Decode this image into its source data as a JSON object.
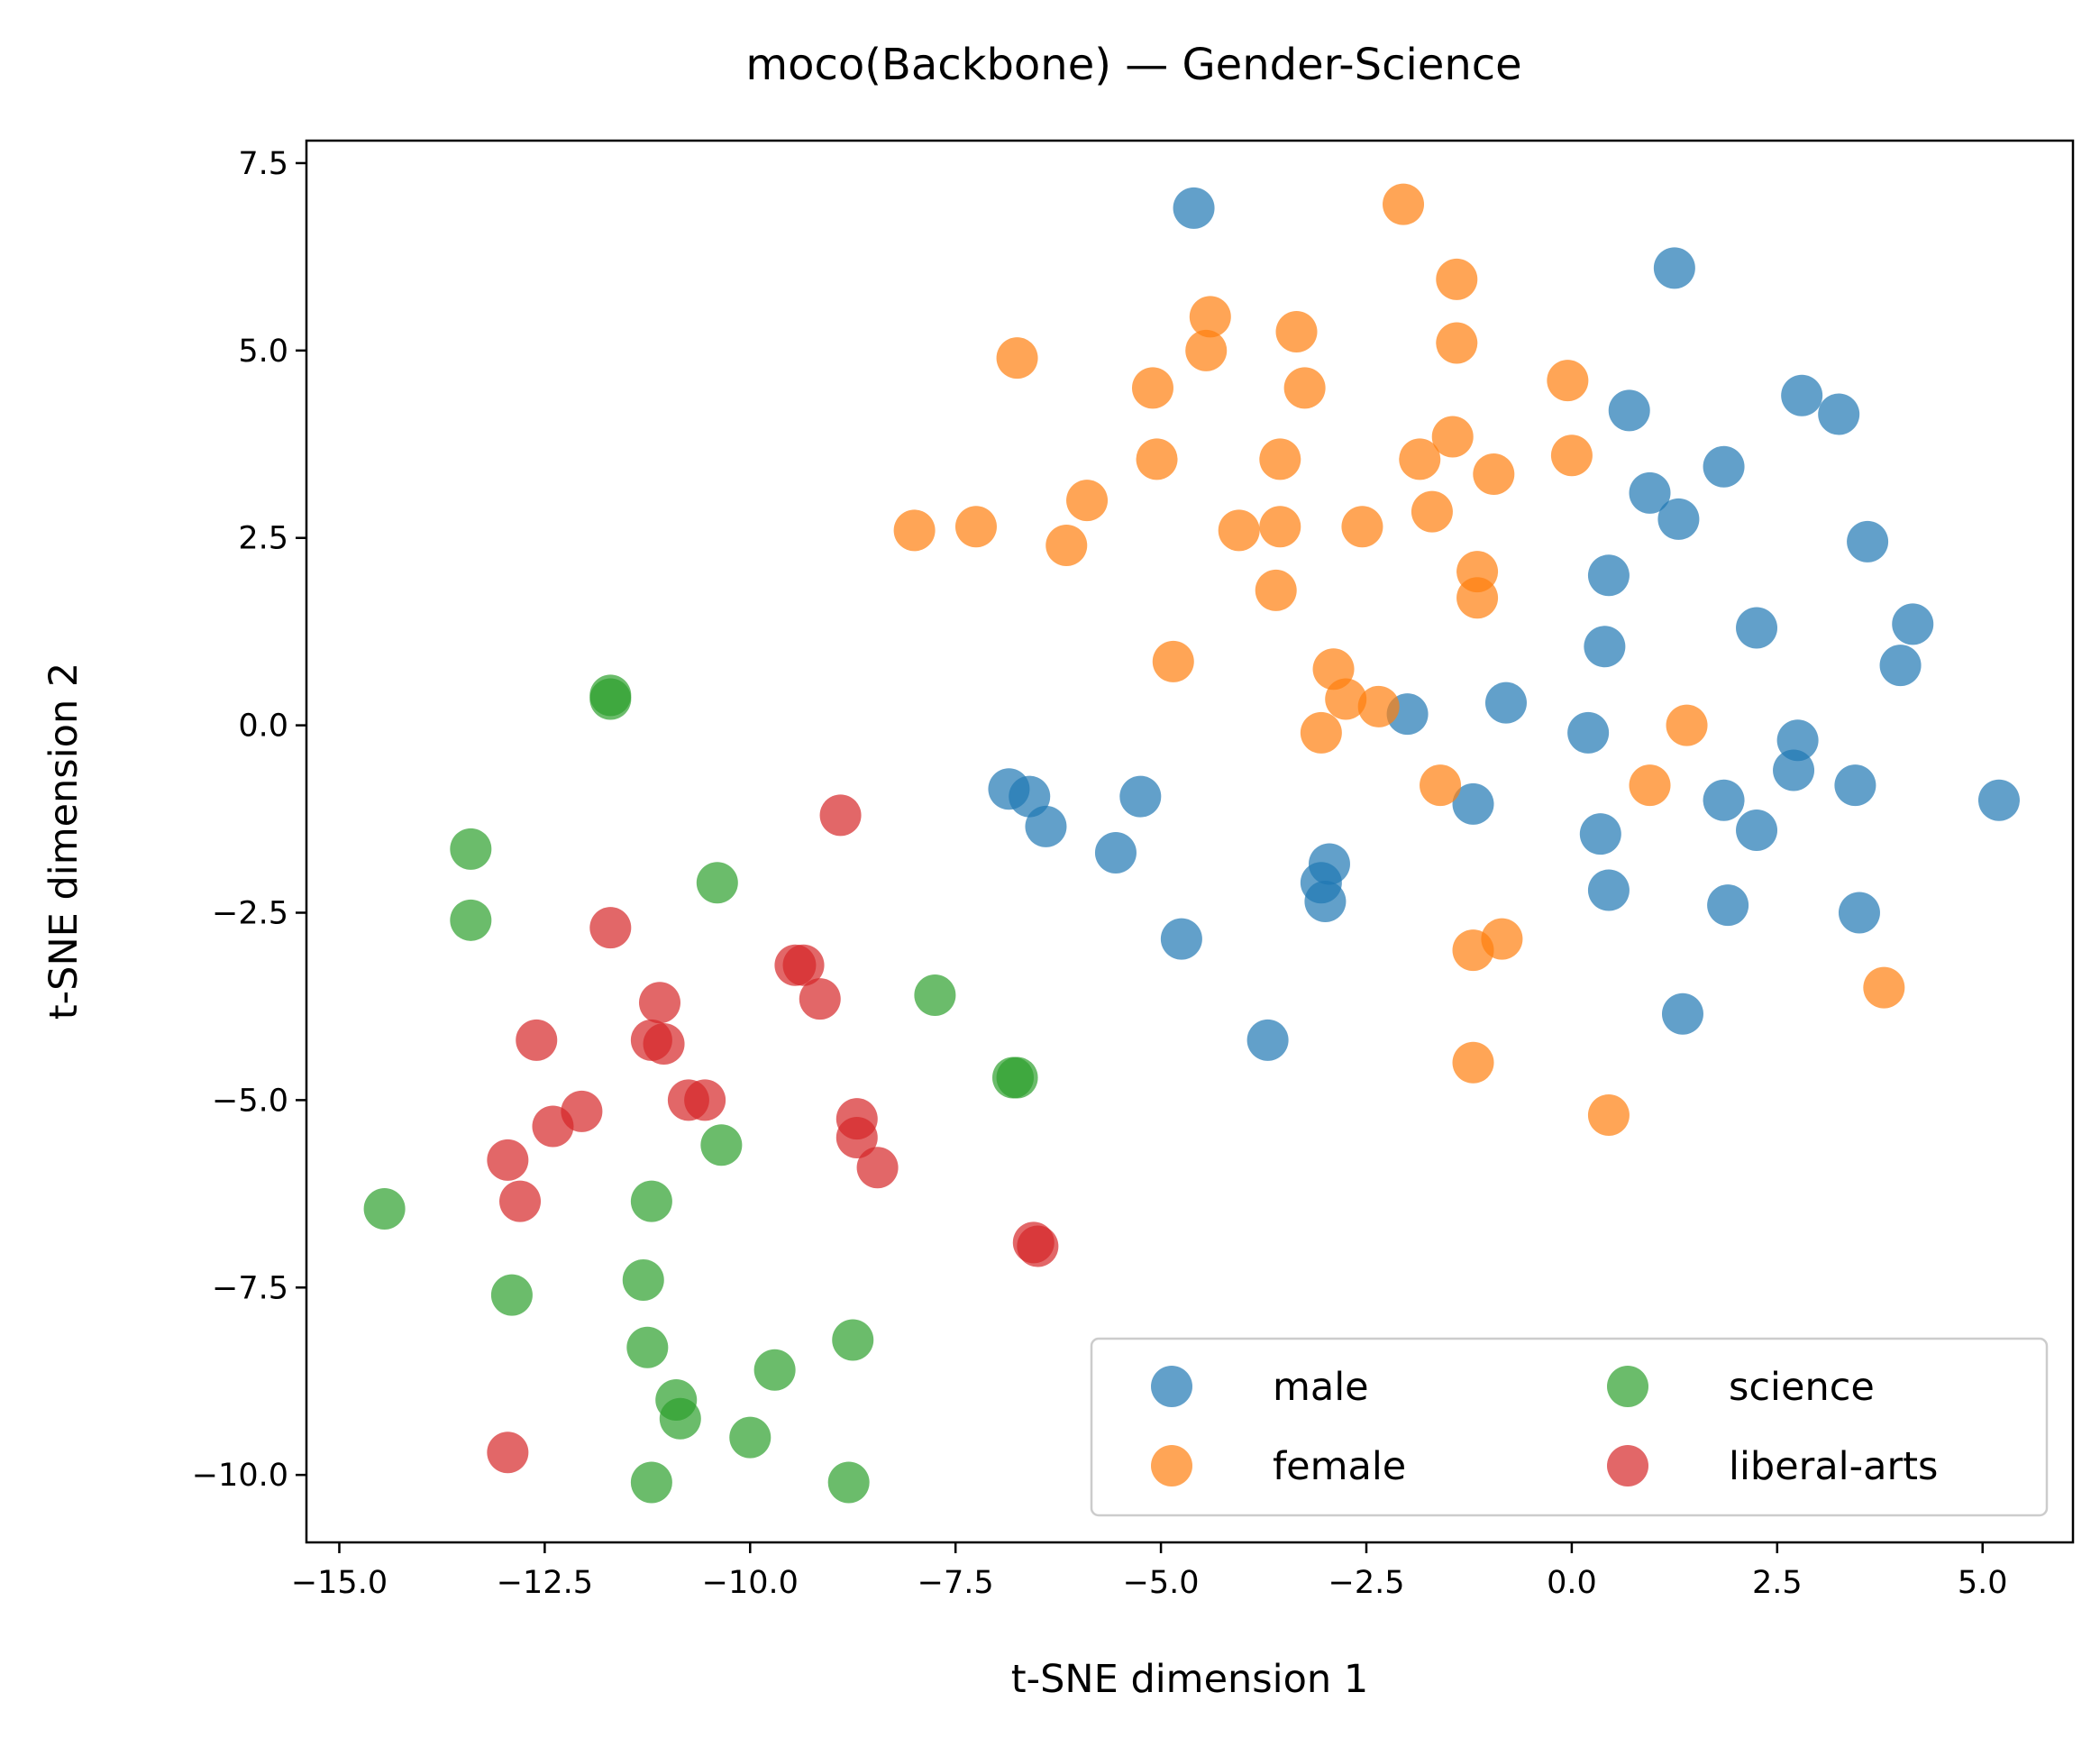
{
  "chart_data": {
    "type": "scatter",
    "title": "moco(Backbone) — Gender-Science",
    "xlabel": "t-SNE dimension 1",
    "ylabel": "t-SNE dimension 2",
    "xlim": [
      -15.4,
      6.1
    ],
    "ylim": [
      -10.9,
      7.8
    ],
    "xticks": [
      -15.0,
      -12.5,
      -10.0,
      -7.5,
      -5.0,
      -2.5,
      0.0,
      2.5,
      5.0
    ],
    "xtick_labels": [
      "−15.0",
      "−12.5",
      "−10.0",
      "−7.5",
      "−5.0",
      "−2.5",
      "0.0",
      "2.5",
      "5.0"
    ],
    "yticks": [
      -10.0,
      -7.5,
      -5.0,
      -2.5,
      0.0,
      2.5,
      5.0,
      7.5
    ],
    "ytick_labels": [
      "−10.0",
      "−7.5",
      "−5.0",
      "−2.5",
      "0.0",
      "2.5",
      "5.0",
      "7.5"
    ],
    "grid": false,
    "legend": {
      "position": "lower-right",
      "columns": 2
    },
    "series": [
      {
        "name": "male",
        "color": "#1f77b4",
        "points": [
          [
            -4.6,
            6.9
          ],
          [
            1.25,
            6.1
          ],
          [
            2.8,
            4.4
          ],
          [
            3.25,
            4.15
          ],
          [
            0.7,
            4.2
          ],
          [
            1.85,
            3.45
          ],
          [
            0.95,
            3.1
          ],
          [
            1.3,
            2.75
          ],
          [
            3.6,
            2.45
          ],
          [
            0.45,
            2.0
          ],
          [
            2.25,
            1.3
          ],
          [
            4.15,
            1.35
          ],
          [
            0.4,
            1.05
          ],
          [
            4.0,
            0.8
          ],
          [
            -2.0,
            0.15
          ],
          [
            -0.8,
            0.3
          ],
          [
            0.2,
            -0.1
          ],
          [
            2.75,
            -0.2
          ],
          [
            2.7,
            -0.6
          ],
          [
            3.45,
            -0.8
          ],
          [
            5.2,
            -1.0
          ],
          [
            -6.85,
            -0.85
          ],
          [
            -6.6,
            -0.95
          ],
          [
            -5.25,
            -0.95
          ],
          [
            1.85,
            -1.0
          ],
          [
            -1.2,
            -1.05
          ],
          [
            -6.4,
            -1.35
          ],
          [
            2.25,
            -1.4
          ],
          [
            0.35,
            -1.45
          ],
          [
            -5.55,
            -1.7
          ],
          [
            -2.95,
            -1.85
          ],
          [
            -3.05,
            -2.1
          ],
          [
            -3.0,
            -2.35
          ],
          [
            0.45,
            -2.2
          ],
          [
            1.9,
            -2.4
          ],
          [
            3.5,
            -2.5
          ],
          [
            -4.75,
            -2.85
          ],
          [
            1.35,
            -3.85
          ],
          [
            -3.7,
            -4.2
          ]
        ]
      },
      {
        "name": "female",
        "color": "#ff7f0e",
        "points": [
          [
            -2.05,
            6.95
          ],
          [
            -1.4,
            5.95
          ],
          [
            -4.4,
            5.45
          ],
          [
            -3.35,
            5.25
          ],
          [
            -1.4,
            5.1
          ],
          [
            -4.45,
            5.0
          ],
          [
            -6.75,
            4.9
          ],
          [
            -5.1,
            4.5
          ],
          [
            -3.25,
            4.5
          ],
          [
            -0.05,
            4.6
          ],
          [
            -1.45,
            3.85
          ],
          [
            -5.05,
            3.55
          ],
          [
            -3.55,
            3.55
          ],
          [
            -1.85,
            3.55
          ],
          [
            0.0,
            3.6
          ],
          [
            -0.95,
            3.35
          ],
          [
            -5.9,
            3.0
          ],
          [
            -1.7,
            2.85
          ],
          [
            -8.0,
            2.6
          ],
          [
            -7.25,
            2.65
          ],
          [
            -4.05,
            2.6
          ],
          [
            -3.55,
            2.65
          ],
          [
            -2.55,
            2.65
          ],
          [
            -6.15,
            2.4
          ],
          [
            -1.15,
            2.05
          ],
          [
            -3.6,
            1.8
          ],
          [
            -1.15,
            1.7
          ],
          [
            -4.85,
            0.85
          ],
          [
            -2.9,
            0.75
          ],
          [
            -2.75,
            0.35
          ],
          [
            -2.35,
            0.25
          ],
          [
            1.4,
            0.0
          ],
          [
            -3.05,
            -0.1
          ],
          [
            -1.6,
            -0.8
          ],
          [
            0.95,
            -0.8
          ],
          [
            -1.2,
            -3.0
          ],
          [
            -0.85,
            -2.85
          ],
          [
            3.8,
            -3.5
          ],
          [
            -1.2,
            -4.5
          ],
          [
            0.45,
            -5.2
          ]
        ]
      },
      {
        "name": "science",
        "color": "#2ca02c",
        "points": [
          [
            -11.7,
            0.4
          ],
          [
            -11.7,
            0.35
          ],
          [
            -13.4,
            -1.65
          ],
          [
            -13.4,
            -2.6
          ],
          [
            -10.4,
            -2.1
          ],
          [
            -7.75,
            -3.6
          ],
          [
            -6.8,
            -4.7
          ],
          [
            -6.75,
            -4.7
          ],
          [
            -10.35,
            -5.6
          ],
          [
            -14.45,
            -6.45
          ],
          [
            -11.2,
            -6.35
          ],
          [
            -11.3,
            -7.4
          ],
          [
            -12.9,
            -7.6
          ],
          [
            -11.25,
            -8.3
          ],
          [
            -8.75,
            -8.2
          ],
          [
            -9.7,
            -8.6
          ],
          [
            -10.9,
            -9.0
          ],
          [
            -10.85,
            -9.25
          ],
          [
            -10.0,
            -9.5
          ],
          [
            -11.2,
            -10.1
          ],
          [
            -8.8,
            -10.1
          ]
        ]
      },
      {
        "name": "liberal-arts",
        "color": "#d62728",
        "points": [
          [
            -8.9,
            -1.2
          ],
          [
            -11.7,
            -2.7
          ],
          [
            -9.45,
            -3.2
          ],
          [
            -9.35,
            -3.2
          ],
          [
            -9.15,
            -3.65
          ],
          [
            -11.1,
            -3.7
          ],
          [
            -12.6,
            -4.2
          ],
          [
            -11.2,
            -4.2
          ],
          [
            -11.05,
            -4.25
          ],
          [
            -10.75,
            -5.0
          ],
          [
            -10.55,
            -5.0
          ],
          [
            -12.05,
            -5.15
          ],
          [
            -12.4,
            -5.35
          ],
          [
            -8.7,
            -5.25
          ],
          [
            -8.7,
            -5.5
          ],
          [
            -8.45,
            -5.9
          ],
          [
            -12.95,
            -5.8
          ],
          [
            -12.8,
            -6.35
          ],
          [
            -6.55,
            -6.9
          ],
          [
            -6.5,
            -6.95
          ],
          [
            -12.95,
            -9.7
          ]
        ]
      }
    ]
  }
}
